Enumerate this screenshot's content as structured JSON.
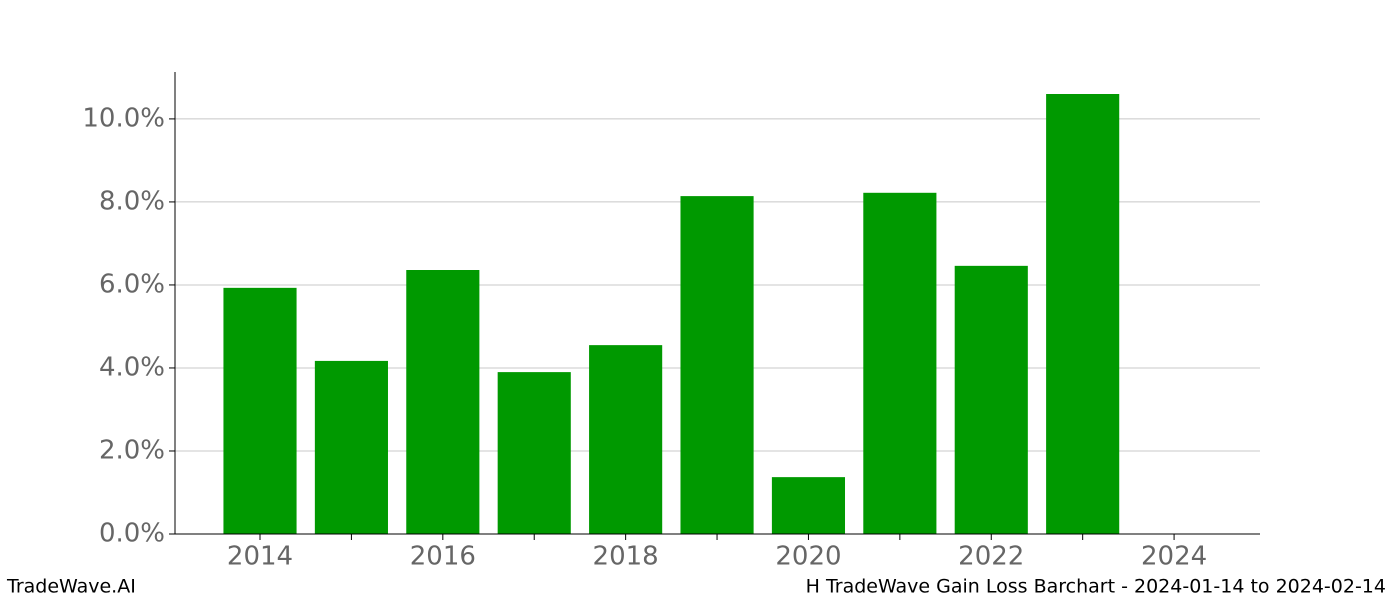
{
  "chart_data": {
    "type": "bar",
    "x": [
      2014,
      2015,
      2016,
      2017,
      2018,
      2019,
      2020,
      2021,
      2022,
      2023
    ],
    "values": [
      5.93,
      4.17,
      6.36,
      3.9,
      4.55,
      8.14,
      1.37,
      8.22,
      6.46,
      10.6
    ],
    "color": "#009900",
    "bar_width": 0.8,
    "xlim": [
      2013.07,
      2024.94
    ],
    "xticks": [
      2014,
      2016,
      2018,
      2020,
      2022,
      2024
    ],
    "xminorticks": [
      2015,
      2017,
      2019,
      2021,
      2023
    ],
    "ylim": [
      0,
      11.13
    ],
    "yticks": [
      {
        "value": 0,
        "label": "0.0%"
      },
      {
        "value": 2,
        "label": "2.0%"
      },
      {
        "value": 4,
        "label": "4.0%"
      },
      {
        "value": 6,
        "label": "6.0%"
      },
      {
        "value": 8,
        "label": "8.0%"
      },
      {
        "value": 10,
        "label": "10.0%"
      }
    ],
    "grid": true
  },
  "footer": {
    "left": "TradeWave.AI",
    "right": "H TradeWave Gain Loss Barchart - 2024-01-14 to 2024-02-14"
  }
}
